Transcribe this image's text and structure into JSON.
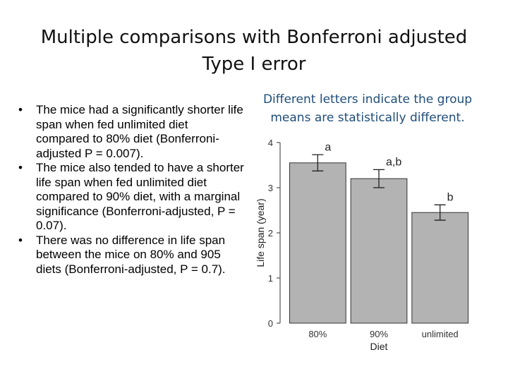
{
  "slide": {
    "title_line1": "Multiple comparisons with Bonferroni adjusted",
    "title_line2": "Type I error",
    "bullets": [
      "The mice had a significantly shorter life span when fed unlimited diet compared to 80% diet (Bonferroni-adjusted P = 0.007).",
      "The mice also tended to have a shorter life span when fed unlimited diet compared to 90% diet, with a marginal significance (Bonferroni-adjusted, P = 0.07).",
      "There was no difference in life span between the mice on 80% and 905 diets (Bonferroni-adjusted, P = 0.7)."
    ],
    "note_line1": "Different letters indicate the group",
    "note_line2": "means are statistically different."
  },
  "chart_data": {
    "type": "bar",
    "categories": [
      "80%",
      "90%",
      "unlimited"
    ],
    "values": [
      3.55,
      3.2,
      2.45
    ],
    "errors": [
      0.18,
      0.2,
      0.17
    ],
    "group_letters": [
      "a",
      "a,b",
      "b"
    ],
    "xlabel": "Diet",
    "ylabel": "Life span (year)",
    "ylim": [
      0,
      4
    ],
    "yticks": [
      0,
      1,
      2,
      3,
      4
    ],
    "bar_color": "#b3b3b3",
    "grid": false
  }
}
